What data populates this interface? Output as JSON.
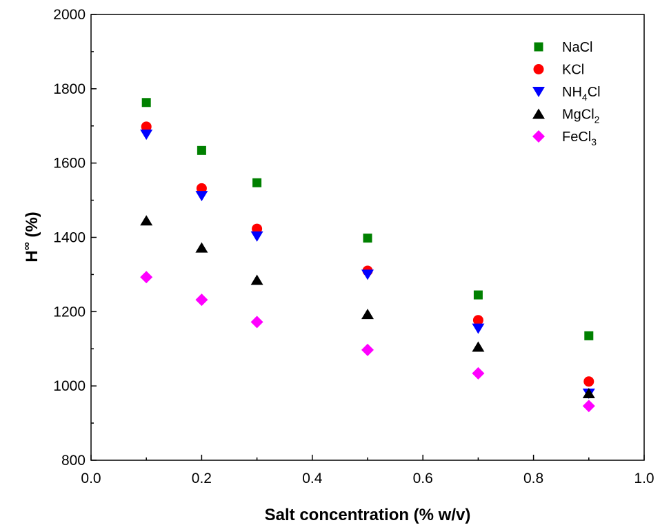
{
  "chart_data": {
    "type": "scatter",
    "xlabel": "Salt concentration (% w/v)",
    "ylabel": {
      "base": "H",
      "sup": "∞",
      "unit": " (%)"
    },
    "xlim": [
      0.0,
      1.0
    ],
    "ylim": [
      800,
      2000
    ],
    "xticks": [
      0.0,
      0.2,
      0.4,
      0.6,
      0.8,
      1.0
    ],
    "xtick_labels": [
      "0.0",
      "0.2",
      "0.4",
      "0.6",
      "0.8",
      "1.0"
    ],
    "yticks": [
      800,
      1000,
      1200,
      1400,
      1600,
      1800,
      2000
    ],
    "ytick_labels": [
      "800",
      "1000",
      "1200",
      "1400",
      "1600",
      "1800",
      "2000"
    ],
    "grid": false,
    "legend_position": "top-right",
    "x": [
      0.1,
      0.2,
      0.3,
      0.5,
      0.7,
      0.9
    ],
    "series": [
      {
        "name": "NaCl",
        "label_parts": [
          {
            "t": "NaCl"
          }
        ],
        "marker": "square",
        "color": "#008000",
        "values": [
          1763,
          1634,
          1547,
          1398,
          1245,
          1135
        ]
      },
      {
        "name": "KCl",
        "label_parts": [
          {
            "t": "KCl"
          }
        ],
        "marker": "circle",
        "color": "#ff0000",
        "values": [
          1698,
          1532,
          1423,
          1310,
          1177,
          1012
        ]
      },
      {
        "name": "NH4Cl",
        "label_parts": [
          {
            "t": "NH"
          },
          {
            "t": "4",
            "sub": true
          },
          {
            "t": "Cl"
          }
        ],
        "marker": "triangle-down",
        "color": "#0000ff",
        "values": [
          1677,
          1512,
          1403,
          1300,
          1155,
          980
        ]
      },
      {
        "name": "MgCl2",
        "label_parts": [
          {
            "t": "MgCl"
          },
          {
            "t": "2",
            "sub": true
          }
        ],
        "marker": "triangle-up",
        "color": "#000000",
        "values": [
          1445,
          1372,
          1285,
          1193,
          1105,
          980
        ]
      },
      {
        "name": "FeCl3",
        "label_parts": [
          {
            "t": "FeCl"
          },
          {
            "t": "3",
            "sub": true
          }
        ],
        "marker": "diamond",
        "color": "#ff00ff",
        "values": [
          1293,
          1232,
          1172,
          1097,
          1034,
          946
        ]
      }
    ]
  }
}
